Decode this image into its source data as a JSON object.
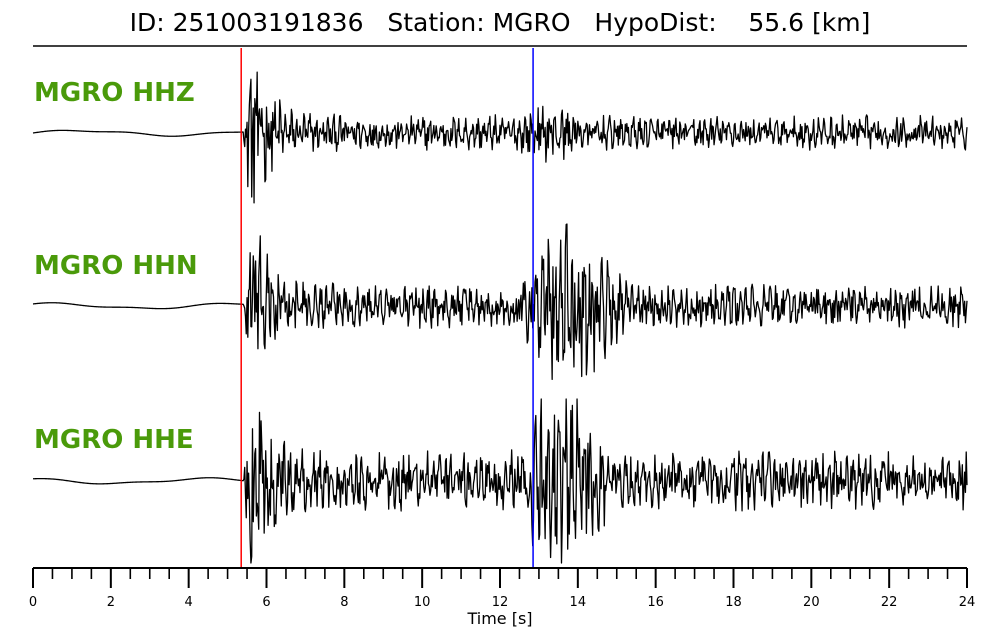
{
  "header": {
    "title": "ID: 251003191836   Station: MGRO   HypoDist:    55.6 [km]"
  },
  "chart_data": {
    "type": "line",
    "title": "ID: 251003191836   Station: MGRO   HypoDist:    55.6 [km]",
    "xlabel": "Time [s]",
    "ylabel": "",
    "xlim": [
      0,
      24
    ],
    "x_ticks": [
      0,
      2,
      4,
      6,
      8,
      10,
      12,
      14,
      16,
      18,
      20,
      22,
      24
    ],
    "x_minor_step": 0.5,
    "grid": false,
    "traces": [
      {
        "name": "MGRO HHZ",
        "color": "#000000",
        "label_color": "#4a9a0a",
        "onset": 5.4,
        "peak_time": 5.65,
        "pre_noise": 0.02,
        "coda_level": 0.18,
        "secondary_time": 13.3,
        "secondary_amp": 0.3,
        "tail_level": 0.12
      },
      {
        "name": "MGRO HHN",
        "color": "#000000",
        "label_color": "#4a9a0a",
        "onset": 5.4,
        "peak_time": 5.7,
        "pre_noise": 0.02,
        "coda_level": 0.22,
        "secondary_time": 13.8,
        "secondary_amp": 0.95,
        "tail_level": 0.18
      },
      {
        "name": "MGRO HHE",
        "color": "#000000",
        "label_color": "#4a9a0a",
        "onset": 5.4,
        "peak_time": 5.65,
        "pre_noise": 0.02,
        "coda_level": 0.3,
        "secondary_time": 13.6,
        "secondary_amp": 1.0,
        "tail_level": 0.25
      }
    ],
    "picks": [
      {
        "phase": "P",
        "time": 5.35,
        "color": "#ff0000"
      },
      {
        "phase": "S",
        "time": 12.85,
        "color": "#0000ff"
      }
    ]
  }
}
